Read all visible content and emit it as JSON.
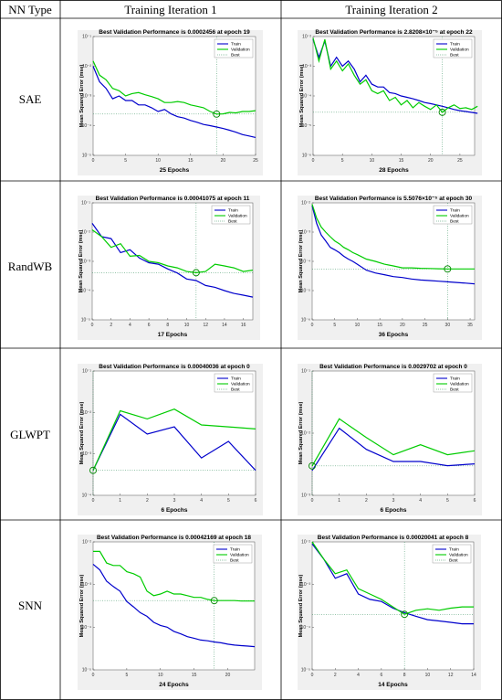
{
  "table": {
    "header": [
      "NN Type",
      "Training Iteration 1",
      "Training Iteration 2"
    ],
    "rows": [
      "SAE",
      "RandWB",
      "GLWPT",
      "SNN"
    ]
  },
  "legend_labels": [
    "Train",
    "Validation",
    "Best"
  ],
  "y_axis_label": "Mean Squared Error  (mse)",
  "colors": {
    "train": "#0000cc",
    "validation": "#00cc00",
    "best": "#2e8b57"
  },
  "chart_data": [
    {
      "id": "sae-1",
      "type": "line",
      "title": "Best Validation Performance is 0.0002456 at epoch 19",
      "xlabel": "25 Epochs",
      "xlim": [
        0,
        25
      ],
      "xticks": [
        0,
        5,
        10,
        15,
        20,
        25
      ],
      "ylim_exp": [
        -5,
        -1
      ],
      "yscale": "log",
      "best_epoch": 19,
      "best_value": 0.0002456,
      "series": [
        {
          "name": "Train",
          "x": [
            0,
            1,
            2,
            3,
            4,
            5,
            6,
            7,
            8,
            9,
            10,
            11,
            12,
            13,
            14,
            15,
            16,
            17,
            18,
            19,
            20,
            21,
            22,
            23,
            24,
            25
          ],
          "values": [
            0.01,
            0.003,
            0.0018,
            0.0008,
            0.001,
            0.0007,
            0.0007,
            0.0005,
            0.0005,
            0.0004,
            0.0003,
            0.00035,
            0.00025,
            0.0002,
            0.00018,
            0.00015,
            0.00013,
            0.00011,
            0.0001,
            9e-05,
            8e-05,
            7e-05,
            6e-05,
            5e-05,
            4.5e-05,
            4e-05
          ]
        },
        {
          "name": "Validation",
          "x": [
            0,
            1,
            2,
            3,
            4,
            5,
            6,
            7,
            8,
            9,
            10,
            11,
            12,
            13,
            14,
            15,
            16,
            17,
            18,
            19,
            20,
            21,
            22,
            23,
            24,
            25
          ],
          "values": [
            0.015,
            0.005,
            0.0035,
            0.0018,
            0.0015,
            0.001,
            0.0012,
            0.0013,
            0.0011,
            0.00095,
            0.0008,
            0.0006,
            0.0006,
            0.00065,
            0.0006,
            0.0005,
            0.00045,
            0.0004,
            0.0003,
            0.0002456,
            0.00025,
            0.00028,
            0.00027,
            0.0003,
            0.0003,
            0.00032
          ]
        }
      ]
    },
    {
      "id": "sae-2",
      "type": "line",
      "title": "Best Validation Performance is 2.8208×10⁻⁵ at epoch 22",
      "xlabel": "28 Epochs",
      "xlim": [
        0,
        27.5
      ],
      "xticks": [
        0,
        5,
        10,
        15,
        20,
        25
      ],
      "ylim_exp": [
        -6,
        -2
      ],
      "yscale": "log",
      "best_epoch": 22,
      "best_value": 2.8208e-05,
      "series": [
        {
          "name": "Train",
          "x": [
            0,
            1,
            2,
            3,
            4,
            5,
            6,
            7,
            8,
            9,
            10,
            11,
            12,
            13,
            14,
            15,
            16,
            17,
            18,
            19,
            20,
            21,
            22,
            23,
            24,
            25,
            26,
            27,
            28
          ],
          "values": [
            0.008,
            0.002,
            0.007,
            0.001,
            0.002,
            0.001,
            0.0015,
            0.0008,
            0.0003,
            0.0005,
            0.00025,
            0.0002,
            0.0002,
            0.00013,
            0.00012,
            0.0001,
            9e-05,
            8e-05,
            7e-05,
            6e-05,
            5.5e-05,
            5e-05,
            4.5e-05,
            4e-05,
            3.5e-05,
            3.2e-05,
            3e-05,
            2.8e-05,
            2.6e-05
          ]
        },
        {
          "name": "Validation",
          "x": [
            0,
            1,
            2,
            3,
            4,
            5,
            6,
            7,
            8,
            9,
            10,
            11,
            12,
            13,
            14,
            15,
            16,
            17,
            18,
            19,
            20,
            21,
            22,
            23,
            24,
            25,
            26,
            27,
            28
          ],
          "values": [
            0.009,
            0.0015,
            0.008,
            0.0008,
            0.0015,
            0.0007,
            0.0012,
            0.0005,
            0.00025,
            0.00035,
            0.00015,
            0.00012,
            0.00015,
            7e-05,
            9e-05,
            5e-05,
            7e-05,
            4e-05,
            6e-05,
            4.5e-05,
            3.5e-05,
            5e-05,
            2.8208e-05,
            4e-05,
            5e-05,
            3.8e-05,
            4e-05,
            3.5e-05,
            4.5e-05
          ]
        }
      ]
    },
    {
      "id": "randwb-1",
      "type": "line",
      "title": "Best Validation Performance is 0.00041075 at epoch 11",
      "xlabel": "17 Epochs",
      "xlim": [
        0,
        17
      ],
      "xticks": [
        0,
        2,
        4,
        6,
        8,
        10,
        12,
        14,
        16
      ],
      "ylim_exp": [
        -5,
        -1
      ],
      "yscale": "log",
      "best_epoch": 11,
      "best_value": 0.00041075,
      "series": [
        {
          "name": "Train",
          "x": [
            0,
            1,
            2,
            3,
            4,
            5,
            6,
            7,
            8,
            9,
            10,
            11,
            12,
            13,
            14,
            15,
            16,
            17
          ],
          "values": [
            0.02,
            0.007,
            0.006,
            0.002,
            0.0025,
            0.0013,
            0.0009,
            0.0008,
            0.00055,
            0.0004,
            0.00025,
            0.00022,
            0.00015,
            0.00013,
            0.0001,
            8e-05,
            7e-05,
            6e-05
          ]
        },
        {
          "name": "Validation",
          "x": [
            0,
            1,
            2,
            3,
            4,
            5,
            6,
            7,
            8,
            9,
            10,
            11,
            12,
            13,
            14,
            15,
            16,
            17
          ],
          "values": [
            0.012,
            0.007,
            0.003,
            0.004,
            0.0015,
            0.0016,
            0.001,
            0.0009,
            0.0007,
            0.0006,
            0.00045,
            0.00041075,
            0.00045,
            0.0008,
            0.0007,
            0.0006,
            0.00045,
            0.0005
          ]
        }
      ]
    },
    {
      "id": "randwb-2",
      "type": "line",
      "title": "Best Validation Performance is 5.5076×10⁻⁵ at epoch 30",
      "xlabel": "36 Epochs",
      "xlim": [
        0,
        36
      ],
      "xticks": [
        0,
        5,
        10,
        15,
        20,
        25,
        30,
        35
      ],
      "ylim_exp": [
        -6,
        -2
      ],
      "yscale": "log",
      "best_epoch": 30,
      "best_value": 5.5076e-05,
      "series": [
        {
          "name": "Train",
          "x": [
            0,
            1,
            2,
            3,
            4,
            5,
            6,
            7,
            8,
            9,
            10,
            12,
            14,
            16,
            18,
            20,
            22,
            24,
            26,
            28,
            30,
            32,
            34,
            36
          ],
          "values": [
            0.008,
            0.002,
            0.0008,
            0.0005,
            0.0003,
            0.00025,
            0.0002,
            0.00015,
            0.00012,
            0.0001,
            8e-05,
            5e-05,
            4e-05,
            3.5e-05,
            3e-05,
            2.8e-05,
            2.5e-05,
            2.3e-05,
            2.2e-05,
            2.1e-05,
            2e-05,
            1.9e-05,
            1.8e-05,
            1.7e-05
          ]
        },
        {
          "name": "Validation",
          "x": [
            0,
            1,
            2,
            3,
            4,
            5,
            6,
            7,
            8,
            9,
            10,
            12,
            14,
            16,
            18,
            20,
            22,
            24,
            26,
            28,
            30,
            32,
            34,
            36
          ],
          "values": [
            0.009,
            0.003,
            0.0015,
            0.001,
            0.0007,
            0.0005,
            0.0004,
            0.0003,
            0.00025,
            0.0002,
            0.00017,
            0.00012,
            0.0001,
            8e-05,
            7e-05,
            6e-05,
            6e-05,
            5.8e-05,
            5.7e-05,
            5.6e-05,
            5.5076e-05,
            5.5e-05,
            5.5e-05,
            5.5e-05
          ]
        }
      ]
    },
    {
      "id": "glwpt-1",
      "type": "line",
      "title": "Best Validation Performance is 0.00040036 at epoch 0",
      "xlabel": "6 Epochs",
      "xlim": [
        0,
        6
      ],
      "xticks": [
        0,
        1,
        2,
        3,
        4,
        5,
        6
      ],
      "ylim_exp": [
        -4,
        -1
      ],
      "yscale": "log",
      "best_epoch": 0,
      "best_value": 0.00040036,
      "series": [
        {
          "name": "Train",
          "x": [
            0,
            1,
            2,
            3,
            4,
            5,
            6
          ],
          "values": [
            0.0004,
            0.009,
            0.003,
            0.0045,
            0.0008,
            0.002,
            0.0004
          ]
        },
        {
          "name": "Validation",
          "x": [
            0,
            1,
            2,
            3,
            4,
            5,
            6
          ],
          "values": [
            0.00040036,
            0.011,
            0.007,
            0.012,
            0.005,
            0.0045,
            0.004
          ]
        }
      ]
    },
    {
      "id": "glwpt-2",
      "type": "line",
      "title": "Best Validation Performance is 0.0029702 at epoch 0",
      "xlabel": "6 Epochs",
      "xlim": [
        0,
        6
      ],
      "xticks": [
        0,
        1,
        2,
        3,
        4,
        5,
        6
      ],
      "ylim_exp": [
        -3,
        -1
      ],
      "yscale": "log",
      "best_epoch": 0,
      "best_value": 0.0029702,
      "series": [
        {
          "name": "Train",
          "x": [
            0,
            1,
            2,
            3,
            4,
            5,
            6
          ],
          "values": [
            0.0025,
            0.012,
            0.0055,
            0.0035,
            0.0035,
            0.003,
            0.0032
          ]
        },
        {
          "name": "Validation",
          "x": [
            0,
            1,
            2,
            3,
            4,
            5,
            6
          ],
          "values": [
            0.0029702,
            0.017,
            0.0085,
            0.0045,
            0.0065,
            0.0045,
            0.0052
          ]
        }
      ]
    },
    {
      "id": "snn-1",
      "type": "line",
      "title": "Best Validation Performance is 0.00042169 at epoch 18",
      "xlabel": "24 Epochs",
      "xlim": [
        0,
        24
      ],
      "xticks": [
        0,
        5,
        10,
        15,
        20
      ],
      "ylim_exp": [
        -5,
        -2
      ],
      "yscale": "log",
      "best_epoch": 18,
      "best_value": 0.00042169,
      "series": [
        {
          "name": "Train",
          "x": [
            0,
            1,
            2,
            3,
            4,
            5,
            6,
            7,
            8,
            9,
            10,
            11,
            12,
            13,
            14,
            15,
            16,
            17,
            18,
            19,
            20,
            21,
            22,
            23,
            24
          ],
          "values": [
            0.003,
            0.0022,
            0.0012,
            0.0009,
            0.0007,
            0.0004,
            0.0003,
            0.00022,
            0.00018,
            0.00013,
            0.00011,
            0.0001,
            8e-05,
            7e-05,
            6e-05,
            5.5e-05,
            5e-05,
            4.8e-05,
            4.5e-05,
            4.3e-05,
            4e-05,
            3.8e-05,
            3.7e-05,
            3.6e-05,
            3.5e-05
          ]
        },
        {
          "name": "Validation",
          "x": [
            0,
            1,
            2,
            3,
            4,
            5,
            6,
            7,
            8,
            9,
            10,
            11,
            12,
            13,
            14,
            15,
            16,
            17,
            18,
            19,
            20,
            21,
            22,
            23,
            24
          ],
          "values": [
            0.006,
            0.006,
            0.0032,
            0.0028,
            0.0028,
            0.002,
            0.0018,
            0.0015,
            0.0007,
            0.00055,
            0.0006,
            0.0007,
            0.0006,
            0.0006,
            0.00055,
            0.0005,
            0.0005,
            0.00045,
            0.00042169,
            0.00042,
            0.00042,
            0.00042,
            0.00041,
            0.00041,
            0.00041
          ]
        }
      ]
    },
    {
      "id": "snn-2",
      "type": "line",
      "title": "Best Validation Performance is 0.00020041 at epoch 8",
      "xlabel": "14 Epochs",
      "xlim": [
        0,
        14
      ],
      "xticks": [
        0,
        2,
        4,
        6,
        8,
        10,
        12,
        14
      ],
      "ylim_exp": [
        -5,
        -2
      ],
      "yscale": "log",
      "best_epoch": 8,
      "best_value": 0.00020041,
      "series": [
        {
          "name": "Train",
          "x": [
            0,
            1,
            2,
            3,
            4,
            5,
            6,
            7,
            8,
            9,
            10,
            11,
            12,
            13,
            14
          ],
          "values": [
            0.009,
            0.004,
            0.0014,
            0.0018,
            0.0006,
            0.00045,
            0.0004,
            0.00028,
            0.00022,
            0.00018,
            0.00015,
            0.00014,
            0.00013,
            0.00012,
            0.00012
          ]
        },
        {
          "name": "Validation",
          "x": [
            0,
            1,
            2,
            3,
            4,
            5,
            6,
            7,
            8,
            9,
            10,
            11,
            12,
            13,
            14
          ],
          "values": [
            0.01,
            0.004,
            0.0018,
            0.0022,
            0.0008,
            0.0006,
            0.00045,
            0.0003,
            0.00020041,
            0.00025,
            0.00027,
            0.00025,
            0.00028,
            0.0003,
            0.0003
          ]
        }
      ]
    }
  ]
}
